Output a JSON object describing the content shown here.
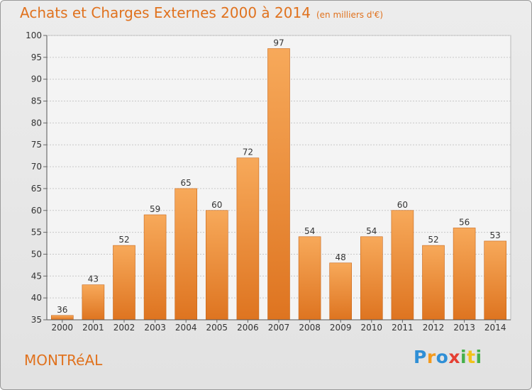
{
  "header": {
    "title": "Achats et Charges Externes 2000 à 2014",
    "unit": "(en milliers d'€)"
  },
  "footer": {
    "city": "MONTRéAL",
    "logo_letters": [
      "P",
      "r",
      "o",
      "x",
      "i",
      "t",
      "i"
    ],
    "logo_colors": [
      "#2f8fd6",
      "#f39a1e",
      "#2f8fd6",
      "#e53f33",
      "#46b04a",
      "#f2c21a",
      "#46b04a"
    ]
  },
  "colors": {
    "bar_light": "#f7a95a",
    "bar_dark": "#de7420",
    "accent": "#e0721e"
  },
  "chart_data": {
    "type": "bar",
    "title": "Achats et Charges Externes 2000 à 2014",
    "categories": [
      "2000",
      "2001",
      "2002",
      "2003",
      "2004",
      "2005",
      "2006",
      "2007",
      "2008",
      "2009",
      "2010",
      "2011",
      "2012",
      "2013",
      "2014"
    ],
    "values": [
      36,
      43,
      52,
      59,
      65,
      60,
      72,
      97,
      54,
      48,
      54,
      60,
      52,
      56,
      53
    ],
    "ylim": [
      35,
      100
    ],
    "yticks": [
      35,
      40,
      45,
      50,
      55,
      60,
      65,
      70,
      75,
      80,
      85,
      90,
      95,
      100
    ],
    "grid": true,
    "xlabel": "",
    "ylabel": ""
  }
}
